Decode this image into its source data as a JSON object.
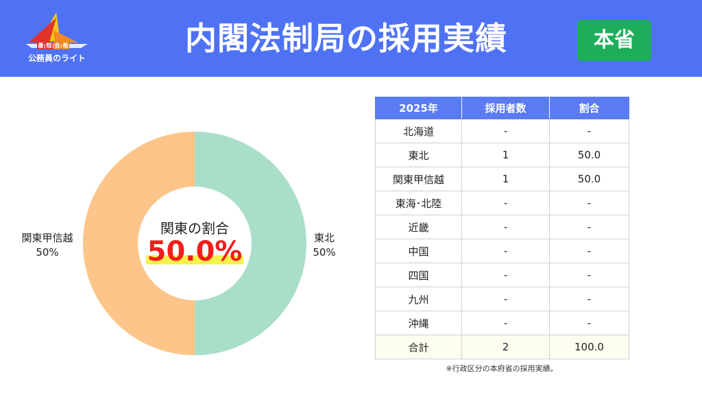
{
  "header": {
    "logo_badge": [
      "最",
      "短",
      "合",
      "格"
    ],
    "logo_name": "公務員のライト",
    "title": "内閣法制局の採用実績",
    "badge": "本省"
  },
  "colors": {
    "header_bg": "#4f72f4",
    "badge_bg": "#1eae5a",
    "slice_kanto": "#fdc589",
    "slice_tohoku": "#a9dec9",
    "highlight_text": "#f21d1d",
    "highlight_marker": "#f6f14a",
    "table_header_bg": "#5a7bf3"
  },
  "chart_data": {
    "type": "pie",
    "donut": true,
    "categories": [
      "東北",
      "関東甲信越"
    ],
    "values": [
      50,
      50
    ],
    "value_labels": [
      "50%",
      "50%"
    ],
    "center_label": "関東の割合",
    "center_value": "50.0%"
  },
  "table": {
    "headers": [
      "2025年",
      "採用者数",
      "割合"
    ],
    "rows": [
      [
        "北海道",
        "-",
        "-"
      ],
      [
        "東北",
        "1",
        "50.0"
      ],
      [
        "関東甲信越",
        "1",
        "50.0"
      ],
      [
        "東海･北陸",
        "-",
        "-"
      ],
      [
        "近畿",
        "-",
        "-"
      ],
      [
        "中国",
        "-",
        "-"
      ],
      [
        "四国",
        "-",
        "-"
      ],
      [
        "九州",
        "-",
        "-"
      ],
      [
        "沖縄",
        "-",
        "-"
      ]
    ],
    "total": [
      "合計",
      "2",
      "100.0"
    ]
  },
  "note": "※行政区分の本府省の採用実績。"
}
